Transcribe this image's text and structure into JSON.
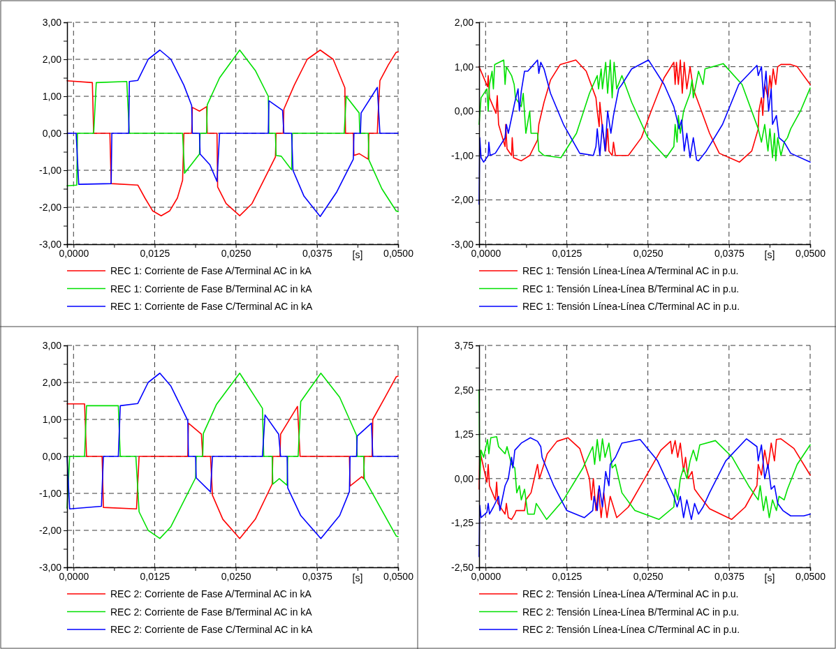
{
  "chart_data": [
    {
      "type": "line",
      "xlabel": "[s]",
      "xlim": [
        -0.001,
        0.05
      ],
      "xticks": [
        {
          "value": 0,
          "label": "0,0000"
        },
        {
          "value": 0.00625,
          "label": null
        },
        {
          "value": 0.0125,
          "label": "0,0125"
        },
        {
          "value": 0.01875,
          "label": null
        },
        {
          "value": 0.025,
          "label": "0,0250"
        },
        {
          "value": 0.03125,
          "label": null
        },
        {
          "value": 0.0375,
          "label": "0,0375"
        },
        {
          "value": 0.04375,
          "label": null
        },
        {
          "value": 0.05,
          "label": "0,0500"
        }
      ],
      "ylim": [
        -3,
        3
      ],
      "yticks": [
        {
          "value": -3,
          "label": "-3,00"
        },
        {
          "value": -2.5,
          "label": null
        },
        {
          "value": -2,
          "label": "-2,00"
        },
        {
          "value": -1.5,
          "label": null
        },
        {
          "value": -1,
          "label": "-1,00"
        },
        {
          "value": -0.5,
          "label": null
        },
        {
          "value": 0,
          "label": "0,00"
        },
        {
          "value": 0.5,
          "label": null
        },
        {
          "value": 1,
          "label": "1,00"
        },
        {
          "value": 1.5,
          "label": null
        },
        {
          "value": 2,
          "label": "2,00"
        },
        {
          "value": 2.5,
          "label": null
        },
        {
          "value": 3,
          "label": "3,00"
        }
      ],
      "grid": true,
      "legend": "bottom",
      "series": [
        {
          "name": "REC 1: Corriente de Fase A/Terminal AC in kA",
          "color": "#ff0000",
          "x": [
            -0.001,
            0.0029,
            0.0031,
            0.0056,
            0.0058,
            0.0099,
            0.011,
            0.0122,
            0.0135,
            0.0148,
            0.016,
            0.0168,
            0.017,
            0.0182,
            0.0183,
            0.0194,
            0.0205,
            0.0206,
            0.0221,
            0.0222,
            0.0235,
            0.0256,
            0.0275,
            0.0295,
            0.0311,
            0.0312,
            0.0323,
            0.0324,
            0.034,
            0.036,
            0.038,
            0.04,
            0.0418,
            0.0419,
            0.0431,
            0.0432,
            0.044,
            0.0454,
            0.0455,
            0.0468,
            0.0469,
            0.0472,
            0.0485,
            0.0497,
            0.05
          ],
          "values": [
            1.42,
            1.37,
            0,
            0,
            -1.36,
            -1.4,
            -1.75,
            -2.1,
            -2.23,
            -2.1,
            -1.75,
            -1.27,
            0,
            0,
            0.7,
            0.6,
            0.72,
            0,
            0,
            -1.45,
            -1.9,
            -2.23,
            -1.9,
            -1.2,
            -0.64,
            0,
            0,
            0.65,
            1.3,
            2,
            2.25,
            2,
            1.23,
            0,
            0,
            -0.6,
            -0.55,
            -0.7,
            0,
            0,
            0.45,
            1.42,
            1.85,
            2.19,
            2.2
          ]
        },
        {
          "name": "REC 1: Corriente de Fase B/Terminal AC in kA",
          "color": "#00e000",
          "x": [
            -0.001,
            0.0005,
            0.0006,
            0.0031,
            0.0035,
            0.0082,
            0.0086,
            0.0168,
            0.0171,
            0.0194,
            0.0195,
            0.0205,
            0.0206,
            0.0225,
            0.0256,
            0.028,
            0.03,
            0.0301,
            0.0311,
            0.0312,
            0.032,
            0.0336,
            0.0337,
            0.0417,
            0.042,
            0.044,
            0.0441,
            0.0454,
            0.0455,
            0.0475,
            0.0497,
            0.05
          ],
          "values": [
            -1.42,
            -1.4,
            0,
            0,
            1.37,
            1.4,
            0,
            0,
            -1.08,
            -0.56,
            0,
            0,
            0.77,
            1.5,
            2.25,
            1.7,
            1,
            0,
            0,
            -0.6,
            -0.62,
            -0.99,
            0,
            0,
            1,
            0.55,
            0,
            0,
            -0.72,
            -1.5,
            -2.1,
            -2.12
          ]
        },
        {
          "name": "REC 1: Corriente de Fase C/Terminal AC in kA",
          "color": "#0000ff",
          "x": [
            -0.001,
            0.0004,
            0.0008,
            0.0058,
            0.0059,
            0.0085,
            0.0086,
            0.0099,
            0.0115,
            0.0133,
            0.015,
            0.017,
            0.0182,
            0.0183,
            0.0194,
            0.0195,
            0.021,
            0.0221,
            0.0225,
            0.03,
            0.0301,
            0.0322,
            0.0324,
            0.0336,
            0.0338,
            0.0355,
            0.038,
            0.0405,
            0.0431,
            0.0432,
            0.0442,
            0.0443,
            0.0468,
            0.0472,
            0.05
          ],
          "values": [
            0,
            0,
            -1.38,
            -1.36,
            0,
            0,
            1.4,
            1.43,
            2,
            2.25,
            2,
            1.3,
            0.75,
            0,
            0,
            -0.56,
            -0.85,
            -1.3,
            0,
            0,
            0.88,
            0.62,
            0,
            0,
            -1,
            -1.7,
            -2.25,
            -1.6,
            -0.7,
            0,
            0,
            0.55,
            1.24,
            0,
            0
          ]
        }
      ]
    },
    {
      "type": "line",
      "xlabel": "[s]",
      "xlim": [
        -0.001,
        0.05
      ],
      "xticks": [
        {
          "value": 0,
          "label": "0,0000"
        },
        {
          "value": 0.00625,
          "label": null
        },
        {
          "value": 0.0125,
          "label": "0,0125"
        },
        {
          "value": 0.01875,
          "label": null
        },
        {
          "value": 0.025,
          "label": "0,0250"
        },
        {
          "value": 0.03125,
          "label": null
        },
        {
          "value": 0.0375,
          "label": "0,0375"
        },
        {
          "value": 0.04375,
          "label": null
        },
        {
          "value": 0.05,
          "label": "0,0500"
        }
      ],
      "ylim": [
        -3,
        2
      ],
      "yticks": [
        {
          "value": -3,
          "label": "-3,00"
        },
        {
          "value": -2.5,
          "label": null
        },
        {
          "value": -2,
          "label": "-2,00"
        },
        {
          "value": -1.5,
          "label": null
        },
        {
          "value": -1,
          "label": "-1,00"
        },
        {
          "value": -0.5,
          "label": null
        },
        {
          "value": 0,
          "label": "0,00"
        },
        {
          "value": 0.5,
          "label": null
        },
        {
          "value": 1,
          "label": "1,00"
        },
        {
          "value": 1.5,
          "label": null
        },
        {
          "value": 2,
          "label": "2,00"
        }
      ],
      "grid": true,
      "legend": "bottom",
      "series": [
        {
          "name": "REC 1: Tensión Línea-Línea A/Terminal AC in p.u.",
          "color": "#ff0000",
          "x": [
            -0.001,
            0.0003,
            0.0004,
            0.0006,
            0.0016,
            0.0018,
            0.002,
            0.003,
            0.0031,
            0.0033,
            0.004,
            0.0041,
            0.0043,
            0.0055,
            0.0068,
            0.008,
            0.0082,
            0.009,
            0.01,
            0.0115,
            0.0139,
            0.0155,
            0.017,
            0.0172,
            0.0175,
            0.0176,
            0.018,
            0.0185,
            0.0188,
            0.019,
            0.0195,
            0.0197,
            0.02,
            0.022,
            0.024,
            0.0255,
            0.0275,
            0.029,
            0.0292,
            0.0294,
            0.0297,
            0.03,
            0.0303,
            0.0306,
            0.031,
            0.0315,
            0.032,
            0.033,
            0.0345,
            0.036,
            0.0391,
            0.041,
            0.042,
            0.0421,
            0.0425,
            0.0427,
            0.043,
            0.0435,
            0.0438,
            0.044,
            0.0443,
            0.0447,
            0.045,
            0.0455,
            0.047,
            0.048,
            0.05
          ],
          "values": [
            1,
            0.55,
            0.8,
            0.3,
            -0.05,
            0.35,
            -0.3,
            -0.8,
            -0.3,
            -0.85,
            -1,
            -0.6,
            -1.05,
            -1.12,
            -1,
            -0.65,
            -0.3,
            0.2,
            0.7,
            1.05,
            1.15,
            0.9,
            0.3,
            0,
            -0.35,
            0.2,
            -0.4,
            -0.9,
            -0.4,
            -0.9,
            -1,
            -0.7,
            -1,
            -1,
            -0.6,
            0,
            0.75,
            1.1,
            0.6,
            1.1,
            0.6,
            1.15,
            0.4,
            1.1,
            0.5,
            1,
            0.5,
            0.1,
            -0.5,
            -0.95,
            -1.15,
            -0.9,
            -0.4,
            0,
            0.3,
            -0.1,
            0.6,
            0.3,
            0.8,
            0.5,
            0.95,
            0.6,
            1,
            1.05,
            1.05,
            1,
            0.6
          ]
        },
        {
          "name": "REC 1: Tensión Línea-Línea B/Terminal AC in p.u.",
          "color": "#00e000",
          "x": [
            -0.001,
            -0.0007,
            0.0002,
            0.0004,
            0.0006,
            0.001,
            0.0012,
            0.0014,
            0.0028,
            0.003,
            0.0032,
            0.004,
            0.0044,
            0.0046,
            0.0055,
            0.0058,
            0.0062,
            0.0068,
            0.007,
            0.008,
            0.0082,
            0.009,
            0.0116,
            0.014,
            0.016,
            0.0172,
            0.0174,
            0.0178,
            0.018,
            0.0185,
            0.0188,
            0.0192,
            0.0195,
            0.0198,
            0.0202,
            0.021,
            0.0225,
            0.025,
            0.0278,
            0.029,
            0.0292,
            0.0295,
            0.0297,
            0.03,
            0.0305,
            0.031,
            0.0315,
            0.0318,
            0.032,
            0.0328,
            0.0335,
            0.0338,
            0.0366,
            0.0395,
            0.042,
            0.0425,
            0.043,
            0.0435,
            0.0438,
            0.0442,
            0.0445,
            0.0447,
            0.045,
            0.0455,
            0.046,
            0.0465,
            0.047,
            0.0485,
            0.05
          ],
          "values": [
            -0.3,
            0.3,
            0.5,
            0,
            0.6,
            0.9,
            0.5,
            1.05,
            1.15,
            0.6,
            1,
            0.8,
            0.6,
            0.3,
            0.1,
            0.4,
            -0.5,
            0,
            -0.5,
            -0.5,
            -0.9,
            -1,
            -1.05,
            -0.5,
            0.4,
            0.8,
            0.5,
            0.95,
            0.5,
            1.1,
            0.4,
            1.15,
            0.3,
            1.1,
            0.5,
            0.8,
            0.2,
            -0.6,
            -1.05,
            -0.8,
            -0.3,
            -0.7,
            -0.1,
            -0.5,
            0,
            0.2,
            0.4,
            0.7,
            0.3,
            0.9,
            0.6,
            0.95,
            1.07,
            0.6,
            -0.4,
            -0.7,
            -0.3,
            -0.9,
            -0.4,
            -1.05,
            -0.5,
            -1.12,
            -0.6,
            -1,
            -0.7,
            -0.6,
            -0.4,
            0,
            0.52
          ]
        },
        {
          "name": "REC 1: Tensión Línea-Línea C/Terminal AC in p.u.",
          "color": "#0000ff",
          "x": [
            -0.001,
            -0.0009,
            -0.0007,
            -0.0003,
            0.0004,
            0.0005,
            0.0007,
            0.0015,
            0.003,
            0.0032,
            0.0035,
            0.0045,
            0.005,
            0.0052,
            0.0055,
            0.006,
            0.0065,
            0.008,
            0.0082,
            0.0085,
            0.009,
            0.01,
            0.012,
            0.0145,
            0.0166,
            0.017,
            0.0172,
            0.0176,
            0.018,
            0.0184,
            0.0188,
            0.0193,
            0.0197,
            0.0205,
            0.021,
            0.0225,
            0.0251,
            0.0275,
            0.029,
            0.0295,
            0.0298,
            0.0302,
            0.0306,
            0.031,
            0.0315,
            0.032,
            0.0325,
            0.0328,
            0.034,
            0.0365,
            0.039,
            0.0418,
            0.042,
            0.0425,
            0.0428,
            0.0432,
            0.0436,
            0.044,
            0.0442,
            0.0448,
            0.0452,
            0.046,
            0.047,
            0.05
          ],
          "values": [
            -2.1,
            -0.6,
            -1.05,
            -1.15,
            -1,
            -0.7,
            -1,
            -0.95,
            -0.6,
            -0.3,
            -0.5,
            0.2,
            0.5,
            0,
            0.45,
            0.9,
            0.9,
            1.15,
            0.85,
            1.1,
            0.95,
            0.4,
            -0.3,
            -0.95,
            -1,
            -0.8,
            -0.4,
            -1,
            -0.3,
            -0.9,
            0,
            -0.5,
            -0.1,
            0.5,
            0.6,
            0.95,
            1.15,
            0.6,
            0.1,
            -0.2,
            -0.4,
            -0.2,
            -0.9,
            -0.5,
            -1.05,
            -0.6,
            -1.1,
            -1.12,
            -0.9,
            -0.3,
            0.6,
            1.03,
            0.8,
            1,
            0.3,
            0.9,
            0,
            0.5,
            -0.3,
            -0.1,
            -0.6,
            -0.7,
            -0.95,
            -1.15
          ]
        }
      ]
    },
    {
      "type": "line",
      "xlabel": "[s]",
      "xlim": [
        -0.001,
        0.05
      ],
      "xticks": [
        {
          "value": 0,
          "label": "0,0000"
        },
        {
          "value": 0.00625,
          "label": null
        },
        {
          "value": 0.0125,
          "label": "0,0125"
        },
        {
          "value": 0.01875,
          "label": null
        },
        {
          "value": 0.025,
          "label": "0,0250"
        },
        {
          "value": 0.03125,
          "label": null
        },
        {
          "value": 0.0375,
          "label": "0,0375"
        },
        {
          "value": 0.04375,
          "label": null
        },
        {
          "value": 0.05,
          "label": "0,0500"
        }
      ],
      "ylim": [
        -3,
        3
      ],
      "yticks": [
        {
          "value": -3,
          "label": "-3,00"
        },
        {
          "value": -2.5,
          "label": null
        },
        {
          "value": -2,
          "label": "-2,00"
        },
        {
          "value": -1.5,
          "label": null
        },
        {
          "value": -1,
          "label": "-1,00"
        },
        {
          "value": -0.5,
          "label": null
        },
        {
          "value": 0,
          "label": "0,00"
        },
        {
          "value": 0.5,
          "label": null
        },
        {
          "value": 1,
          "label": "1,00"
        },
        {
          "value": 1.5,
          "label": null
        },
        {
          "value": 2,
          "label": "2,00"
        },
        {
          "value": 2.5,
          "label": null
        },
        {
          "value": 3,
          "label": "3,00"
        }
      ],
      "grid": true,
      "legend": "bottom",
      "series": [
        {
          "name": "REC 2: Corriente de Fase A/Terminal AC in kA",
          "color": "#ff0000",
          "x": [
            -0.001,
            0.0017,
            0.002,
            0.0044,
            0.0046,
            0.0097,
            0.0101,
            0.0176,
            0.0177,
            0.0197,
            0.0199,
            0.0211,
            0.0214,
            0.023,
            0.0256,
            0.028,
            0.0306,
            0.0307,
            0.0318,
            0.0319,
            0.0345,
            0.0349,
            0.0425,
            0.0426,
            0.0444,
            0.0447,
            0.0448,
            0.046,
            0.0461,
            0.048,
            0.0497,
            0.05
          ],
          "values": [
            1.42,
            1.42,
            0,
            0,
            -1.38,
            -1.42,
            0,
            0,
            0.9,
            0.6,
            0,
            0,
            -1.05,
            -1.7,
            -2.22,
            -1.7,
            -0.75,
            0,
            0,
            0.6,
            1.35,
            0,
            0,
            -0.8,
            -0.55,
            -0.6,
            0,
            0,
            1,
            1.6,
            2.15,
            2.17
          ]
        },
        {
          "name": "REC 2: Corriente de Fase B/Terminal AC in kA",
          "color": "#00e000",
          "x": [
            -0.001,
            -0.0006,
            0.0017,
            0.002,
            0.0069,
            0.0072,
            0.0096,
            0.0101,
            0.0115,
            0.0133,
            0.015,
            0.0188,
            0.0189,
            0.0199,
            0.02,
            0.022,
            0.0256,
            0.0291,
            0.0293,
            0.0306,
            0.0307,
            0.0317,
            0.0329,
            0.033,
            0.0346,
            0.035,
            0.0381,
            0.041,
            0.0436,
            0.0437,
            0.0447,
            0.0448,
            0.047,
            0.0497,
            0.05
          ],
          "values": [
            -1.4,
            0,
            0,
            1.37,
            1.37,
            0,
            0,
            -1.5,
            -2,
            -2.22,
            -1.9,
            -0.58,
            0,
            0,
            0.62,
            1.4,
            2.25,
            1.3,
            0,
            0,
            -0.75,
            -0.6,
            -0.78,
            0,
            0,
            1.48,
            2.25,
            1.6,
            0.57,
            0,
            0,
            -0.6,
            -1.3,
            -2.15,
            -2.17
          ]
        },
        {
          "name": "REC 2: Corriente de Fase C/Terminal AC in kA",
          "color": "#0000ff",
          "x": [
            -0.001,
            -0.0006,
            0.0043,
            0.0046,
            0.0069,
            0.0072,
            0.0099,
            0.0115,
            0.0133,
            0.015,
            0.0176,
            0.0177,
            0.0188,
            0.0189,
            0.0211,
            0.0214,
            0.0291,
            0.0295,
            0.0316,
            0.0319,
            0.0329,
            0.033,
            0.035,
            0.0381,
            0.041,
            0.0425,
            0.0426,
            0.0436,
            0.0437,
            0.0459,
            0.0461,
            0.05
          ],
          "values": [
            0,
            -1.42,
            -1.35,
            0,
            0,
            1.37,
            1.43,
            2,
            2.25,
            1.9,
            0.97,
            0,
            0,
            -0.58,
            -0.96,
            0,
            0,
            1.12,
            0.6,
            0,
            0,
            -0.85,
            -1.6,
            -2.22,
            -1.6,
            -0.95,
            0,
            0,
            0.55,
            0.9,
            0,
            0
          ]
        }
      ]
    },
    {
      "type": "line",
      "xlabel": "[s]",
      "xlim": [
        -0.001,
        0.05
      ],
      "xticks": [
        {
          "value": 0,
          "label": "0,0000"
        },
        {
          "value": 0.00625,
          "label": null
        },
        {
          "value": 0.0125,
          "label": "0,0125"
        },
        {
          "value": 0.01875,
          "label": null
        },
        {
          "value": 0.025,
          "label": "0,0250"
        },
        {
          "value": 0.03125,
          "label": null
        },
        {
          "value": 0.0375,
          "label": "0,0375"
        },
        {
          "value": 0.04375,
          "label": null
        },
        {
          "value": 0.05,
          "label": "0,0500"
        }
      ],
      "ylim": [
        -2.5,
        3.75
      ],
      "yticks": [
        {
          "value": -2.5,
          "label": "-2,50"
        },
        {
          "value": -1.875,
          "label": null
        },
        {
          "value": -1.25,
          "label": "-1,25"
        },
        {
          "value": -0.625,
          "label": null
        },
        {
          "value": 0,
          "label": "0,00"
        },
        {
          "value": 0.625,
          "label": null
        },
        {
          "value": 1.25,
          "label": "1,25"
        },
        {
          "value": 1.875,
          "label": null
        },
        {
          "value": 2.5,
          "label": "2,50"
        },
        {
          "value": 3.125,
          "label": null
        },
        {
          "value": 3.75,
          "label": "3,75"
        }
      ],
      "grid": true,
      "legend": "bottom",
      "series": [
        {
          "name": "REC 2: Tensión Línea-Línea A/Terminal AC in p.u.",
          "color": "#ff0000",
          "x": [
            -0.001,
            -0.0009,
            -0.0003,
            0.0002,
            0.0004,
            0.0006,
            0.0015,
            0.0017,
            0.0019,
            0.003,
            0.0032,
            0.0035,
            0.004,
            0.0045,
            0.0047,
            0.006,
            0.0062,
            0.007,
            0.0075,
            0.008,
            0.0083,
            0.0095,
            0.011,
            0.0127,
            0.0145,
            0.016,
            0.0163,
            0.0166,
            0.017,
            0.0174,
            0.0178,
            0.0182,
            0.0187,
            0.0192,
            0.0202,
            0.022,
            0.0245,
            0.027,
            0.0285,
            0.0287,
            0.0292,
            0.0296,
            0.03,
            0.0305,
            0.0308,
            0.0312,
            0.0318,
            0.0322,
            0.033,
            0.0345,
            0.0379,
            0.04,
            0.0418,
            0.042,
            0.0425,
            0.043,
            0.0435,
            0.044,
            0.0445,
            0.0448,
            0.0455,
            0.0475,
            0.05
          ],
          "values": [
            -0.3,
            0.8,
            0.3,
            -0.1,
            0.4,
            -0.2,
            -0.6,
            -0.1,
            -0.7,
            -1,
            -0.7,
            -1.1,
            -1.15,
            -1,
            -0.9,
            -0.9,
            -0.6,
            -0.4,
            0,
            0.4,
            0,
            0.7,
            1.05,
            1.15,
            0.85,
            0,
            -0.6,
            0,
            -0.9,
            -0.3,
            -1.1,
            -0.4,
            -1.1,
            -0.5,
            -1.1,
            -0.8,
            0,
            0.8,
            1.05,
            0.7,
            1.07,
            0.6,
            1,
            0.2,
            0.6,
            0,
            0.2,
            -0.3,
            -0.5,
            -0.85,
            -1.15,
            -0.8,
            -0.2,
            0.4,
            0.1,
            0.8,
            0.3,
            1,
            0.5,
            1.1,
            1.12,
            0.85,
            0.1
          ]
        },
        {
          "name": "REC 2: Tensión Línea-Línea B/Terminal AC in p.u.",
          "color": "#00e000",
          "x": [
            -0.001,
            -0.0009,
            -0.0007,
            -0.0003,
            0.0003,
            0.0005,
            0.0008,
            0.0017,
            0.002,
            0.003,
            0.0033,
            0.004,
            0.0045,
            0.0048,
            0.0052,
            0.0055,
            0.006,
            0.0065,
            0.0075,
            0.0078,
            0.0094,
            0.012,
            0.015,
            0.0165,
            0.0168,
            0.0172,
            0.0176,
            0.018,
            0.0184,
            0.019,
            0.0195,
            0.02,
            0.021,
            0.023,
            0.0267,
            0.029,
            0.0292,
            0.0296,
            0.03,
            0.0305,
            0.031,
            0.0315,
            0.032,
            0.0325,
            0.033,
            0.0354,
            0.038,
            0.0405,
            0.042,
            0.0423,
            0.0428,
            0.0432,
            0.0437,
            0.0442,
            0.0448,
            0.0452,
            0.046,
            0.0465,
            0.048,
            0.05
          ],
          "values": [
            2.5,
            0,
            0.8,
            0.6,
            1.1,
            0.7,
            1.15,
            1.18,
            0.9,
            0.7,
            0.9,
            0.4,
            0.3,
            -0.4,
            -0.2,
            -0.6,
            -0.3,
            -1,
            -1,
            -0.7,
            -1.15,
            -0.6,
            0.3,
            0.9,
            0.4,
            1.1,
            0.5,
            1.12,
            0.6,
            1,
            0.3,
            0.4,
            -0.4,
            -0.9,
            -1.15,
            -0.8,
            -0.3,
            -0.6,
            0,
            0.3,
            0,
            0.5,
            0.8,
            0.5,
            0.95,
            1.07,
            0.6,
            -0.2,
            -0.6,
            -0.2,
            -0.9,
            -0.5,
            -1.1,
            -0.6,
            -0.9,
            -0.5,
            -0.6,
            -0.3,
            0.4,
            0.95
          ]
        },
        {
          "name": "REC 2: Tensión Línea-Línea C/Terminal AC in p.u.",
          "color": "#0000ff",
          "x": [
            -0.001,
            -0.0009,
            -0.0007,
            0.0002,
            0.0004,
            0.0006,
            0.0012,
            0.002,
            0.0022,
            0.003,
            0.0035,
            0.004,
            0.0042,
            0.0045,
            0.0055,
            0.0069,
            0.008,
            0.0085,
            0.0087,
            0.0105,
            0.0125,
            0.0152,
            0.0165,
            0.0167,
            0.0172,
            0.0175,
            0.018,
            0.0185,
            0.019,
            0.0192,
            0.02,
            0.0205,
            0.021,
            0.0238,
            0.0265,
            0.029,
            0.0295,
            0.03,
            0.0305,
            0.031,
            0.0317,
            0.0322,
            0.0328,
            0.0335,
            0.0345,
            0.037,
            0.0402,
            0.0418,
            0.042,
            0.0425,
            0.043,
            0.0435,
            0.044,
            0.0445,
            0.045,
            0.0458,
            0.047,
            0.049,
            0.05
          ],
          "values": [
            -2.2,
            -0.75,
            -1.1,
            -0.95,
            -0.7,
            -1,
            -0.8,
            -0.5,
            -0.9,
            -0.2,
            0,
            0.6,
            0.3,
            0.8,
            1,
            1.15,
            1.05,
            0.9,
            0.6,
            -0.2,
            -0.9,
            -1.1,
            -0.9,
            -0.5,
            -0.9,
            -0.2,
            -0.8,
            0.2,
            -0.2,
            0.4,
            0.6,
            0.8,
            1,
            1.1,
            0.5,
            -0.5,
            -0.8,
            -0.5,
            -1.1,
            -0.6,
            -1.15,
            -0.7,
            -1,
            -0.8,
            -0.4,
            0.5,
            1.12,
            0.9,
            0.5,
            0.95,
            0,
            0.4,
            -0.3,
            -0.2,
            -0.7,
            -0.9,
            -1.05,
            -1.05,
            -1
          ]
        }
      ]
    }
  ]
}
